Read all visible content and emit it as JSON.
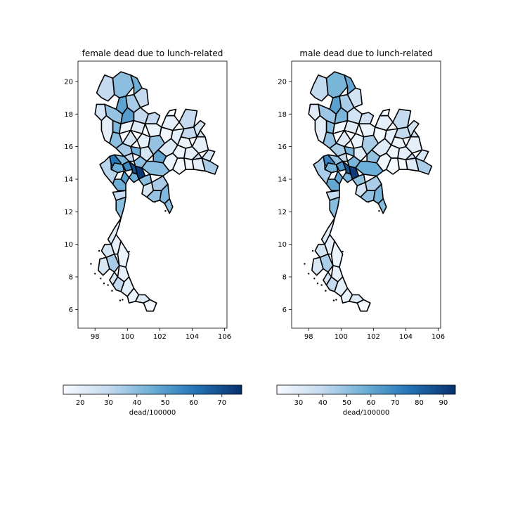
{
  "figure": {
    "panels": [
      {
        "title": "female dead due to lunch-related",
        "colorbar_label": "dead/100000",
        "colorbar_ticks": [
          "20",
          "30",
          "40",
          "50",
          "60",
          "70"
        ],
        "x_ticks": [
          "98",
          "100",
          "102",
          "104",
          "106"
        ],
        "y_ticks": [
          "6",
          "8",
          "10",
          "12",
          "14",
          "16",
          "18",
          "20"
        ],
        "value_range": [
          14,
          77
        ],
        "colorbar_tick_values": [
          20,
          30,
          40,
          50,
          60,
          70
        ],
        "region_values": [
          30,
          40,
          45,
          30,
          35,
          48,
          38,
          50,
          25,
          30,
          42,
          20,
          18,
          22,
          30,
          40,
          25,
          20,
          35,
          45,
          42,
          30,
          25,
          40,
          38,
          48,
          40,
          18,
          15,
          16,
          20,
          35,
          25,
          30,
          20,
          18,
          22,
          18,
          20,
          25,
          30,
          20,
          16,
          18,
          20,
          30,
          25,
          15,
          60,
          45,
          55,
          70,
          75,
          45,
          50,
          40,
          35,
          25,
          38,
          42,
          40,
          45,
          32,
          30,
          40,
          22,
          25,
          20,
          18,
          24,
          35,
          20,
          25,
          30,
          20,
          18,
          22,
          16
        ]
      },
      {
        "title": "male dead due to lunch-related",
        "colorbar_label": "dead/100000",
        "colorbar_ticks": [
          "30",
          "40",
          "50",
          "60",
          "70",
          "80",
          "90"
        ],
        "x_ticks": [
          "98",
          "100",
          "102",
          "104",
          "106"
        ],
        "y_ticks": [
          "6",
          "8",
          "10",
          "12",
          "14",
          "16",
          "18",
          "20"
        ],
        "value_range": [
          21,
          95
        ],
        "colorbar_tick_values": [
          30,
          40,
          50,
          60,
          70,
          80,
          90
        ],
        "region_values": [
          40,
          55,
          60,
          35,
          45,
          62,
          48,
          55,
          30,
          35,
          52,
          28,
          24,
          30,
          36,
          50,
          30,
          25,
          45,
          55,
          50,
          40,
          30,
          55,
          45,
          50,
          58,
          24,
          22,
          22,
          30,
          45,
          32,
          40,
          28,
          24,
          30,
          25,
          28,
          35,
          40,
          28,
          22,
          25,
          28,
          40,
          35,
          22,
          70,
          55,
          65,
          85,
          92,
          55,
          60,
          50,
          45,
          35,
          50,
          55,
          52,
          60,
          45,
          40,
          52,
          30,
          35,
          28,
          25,
          32,
          45,
          28,
          35,
          40,
          28,
          25,
          30,
          22
        ]
      }
    ]
  },
  "colors": {
    "cmap_low": "#f7fbff",
    "cmap_high": "#08306b",
    "outline": "#000000"
  }
}
